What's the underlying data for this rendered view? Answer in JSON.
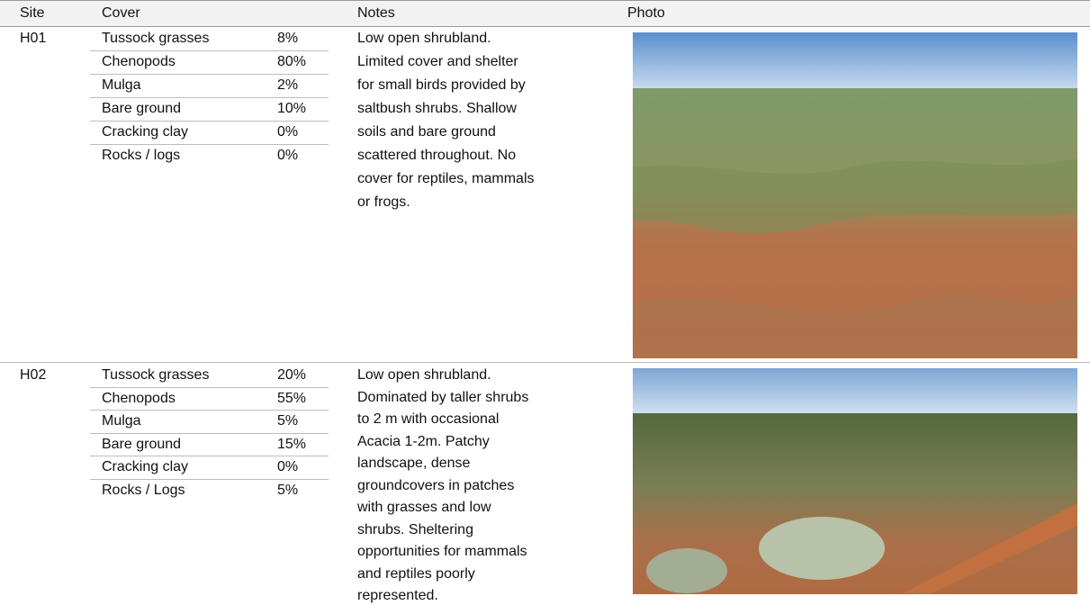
{
  "table": {
    "header": [
      "Site",
      "Cover",
      "Notes",
      "Photo"
    ],
    "rows": [
      {
        "site": "H01",
        "cover": [
          {
            "label": "Tussock grasses",
            "value": "8%"
          },
          {
            "label": "Chenopods",
            "value": "80%"
          },
          {
            "label": "Mulga",
            "value": "2%"
          },
          {
            "label": "Bare ground",
            "value": "10%"
          },
          {
            "label": "Cracking clay",
            "value": "0%"
          },
          {
            "label": "Rocks / logs",
            "value": "0%"
          }
        ],
        "notes": [
          "Low open shrubland.",
          "Limited cover and shelter",
          "for small birds provided by",
          "saltbush shrubs. Shallow",
          "soils and bare ground",
          "scattered throughout. No",
          "cover for reptiles, mammals",
          "or frogs."
        ]
      },
      {
        "site": "H02",
        "cover": [
          {
            "label": "Tussock grasses",
            "value": "20%"
          },
          {
            "label": "Chenopods",
            "value": "55%"
          },
          {
            "label": "Mulga",
            "value": "5%"
          },
          {
            "label": "Bare ground",
            "value": "15%"
          },
          {
            "label": "Cracking clay",
            "value": "0%"
          },
          {
            "label": "Rocks / Logs",
            "value": "5%"
          }
        ],
        "notes": [
          "Low open shrubland.",
          "Dominated by taller shrubs",
          "to 2 m with occasional",
          "Acacia 1-2m. Patchy",
          "landscape, dense",
          "groundcovers in patches",
          "with grasses and low",
          "shrubs. Sheltering",
          "opportunities for mammals",
          "and reptiles poorly",
          "represented."
        ]
      }
    ]
  }
}
